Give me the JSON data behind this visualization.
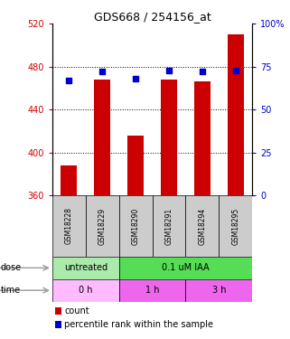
{
  "title": "GDS668 / 254156_at",
  "samples": [
    "GSM18228",
    "GSM18229",
    "GSM18290",
    "GSM18291",
    "GSM18294",
    "GSM18295"
  ],
  "bar_values": [
    388,
    468,
    416,
    468,
    466,
    510
  ],
  "percentile_values": [
    67,
    72,
    68,
    73,
    72,
    73
  ],
  "bar_bottom": 360,
  "ylim_left": [
    360,
    520
  ],
  "ylim_right": [
    0,
    100
  ],
  "yticks_left": [
    360,
    400,
    440,
    480,
    520
  ],
  "yticks_right": [
    0,
    25,
    50,
    75,
    100
  ],
  "bar_color": "#cc0000",
  "percentile_color": "#0000cc",
  "legend_count_color": "#cc0000",
  "legend_percentile_color": "#0000cc",
  "ylabel_right_color": "#0000cc",
  "ylabel_left_color": "#cc0000",
  "grid_color": "black",
  "bar_width": 0.5,
  "dose_info": [
    {
      "text": "untreated",
      "start": 0,
      "end": 2,
      "color": "#aaeaaa"
    },
    {
      "text": "0.1 uM IAA",
      "start": 2,
      "end": 6,
      "color": "#55dd55"
    }
  ],
  "time_info": [
    {
      "text": "0 h",
      "start": 0,
      "end": 2,
      "color": "#ffbbff"
    },
    {
      "text": "1 h",
      "start": 2,
      "end": 4,
      "color": "#ee66ee"
    },
    {
      "text": "3 h",
      "start": 4,
      "end": 6,
      "color": "#ee66ee"
    }
  ],
  "sample_bg_color": "#cccccc",
  "arrow_color": "#999999"
}
